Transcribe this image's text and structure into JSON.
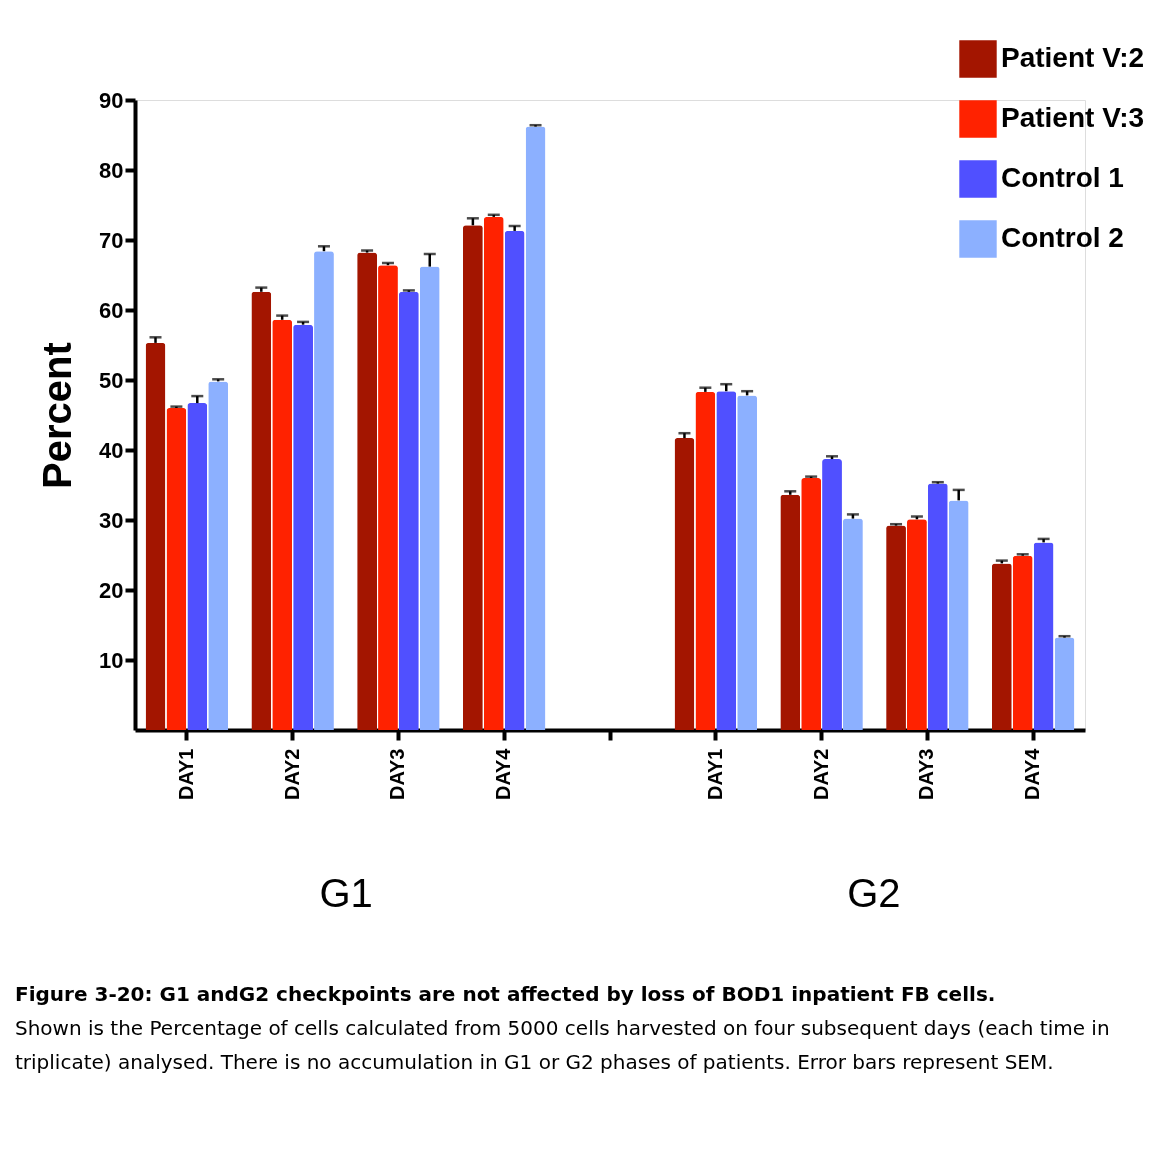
{
  "chart_data": {
    "type": "bar",
    "ylabel": "Percent",
    "categories": [
      "DAY1",
      "DAY2",
      "DAY3",
      "DAY4",
      null,
      "DAY1",
      "DAY2",
      "DAY3",
      "DAY4"
    ],
    "series": [
      {
        "name": "Patient V:2",
        "color": "#a31500",
        "values": [
          55.3,
          62.6,
          68.2,
          72.1,
          null,
          41.7,
          33.6,
          29.2,
          23.8
        ],
        "errors": [
          [
            55.3,
            56.1
          ],
          [
            62.6,
            63.2
          ],
          [
            68.2,
            68.5
          ],
          [
            72.1,
            73.1
          ],
          null,
          [
            41.7,
            42.4
          ],
          [
            33.6,
            34.1
          ],
          [
            29.2,
            29.4
          ],
          [
            23.8,
            24.2
          ]
        ]
      },
      {
        "name": "Patient V:3",
        "color": "#ff2200",
        "values": [
          46.0,
          58.6,
          66.4,
          73.3,
          null,
          48.3,
          36.0,
          30.1,
          24.9
        ],
        "errors": [
          [
            46.0,
            46.2
          ],
          [
            58.6,
            59.2
          ],
          [
            66.4,
            66.7
          ],
          [
            73.3,
            73.6
          ],
          null,
          [
            48.3,
            48.9
          ],
          [
            36.0,
            36.2
          ],
          [
            30.1,
            30.5
          ],
          [
            24.9,
            25.1
          ]
        ]
      },
      {
        "name": "Control 1",
        "color": "#5050ff",
        "values": [
          46.7,
          57.9,
          62.6,
          71.3,
          null,
          48.4,
          38.7,
          35.2,
          26.8
        ],
        "errors": [
          [
            46.7,
            47.7
          ],
          [
            57.9,
            58.3
          ],
          [
            62.6,
            62.8
          ],
          [
            71.3,
            72.0
          ],
          null,
          [
            48.4,
            49.4
          ],
          [
            38.7,
            39.1
          ],
          [
            35.2,
            35.4
          ],
          [
            26.8,
            27.3
          ]
        ]
      },
      {
        "name": "Control 2",
        "color": "#8cb0ff",
        "values": [
          49.8,
          68.4,
          66.2,
          86.2,
          null,
          47.8,
          30.2,
          32.8,
          13.2
        ],
        "errors": [
          [
            49.8,
            50.1
          ],
          [
            68.4,
            69.1
          ],
          [
            66.2,
            68.0
          ],
          [
            86.2,
            86.4
          ],
          null,
          [
            47.8,
            48.4
          ],
          [
            30.2,
            30.8
          ],
          [
            32.8,
            34.3
          ],
          [
            13.2,
            13.4
          ]
        ]
      }
    ],
    "ylim": [
      0,
      90
    ],
    "yticks": [
      10,
      20,
      30,
      40,
      50,
      60,
      70,
      80,
      90
    ],
    "grid": false,
    "legend": "top right",
    "annotations": [
      "G1",
      "G2",
      "Figure 3-20: G1 andG2 checkpoints are not affected by loss of BOD1 inpatient FB cells.",
      "Shown is the Percentage of cells calculated from 5000 cells harvested on four subsequent days (each time in triplicate) analysed. There is no accumulation in G1 or G2 phases of patients. Error bars represent SEM."
    ]
  }
}
